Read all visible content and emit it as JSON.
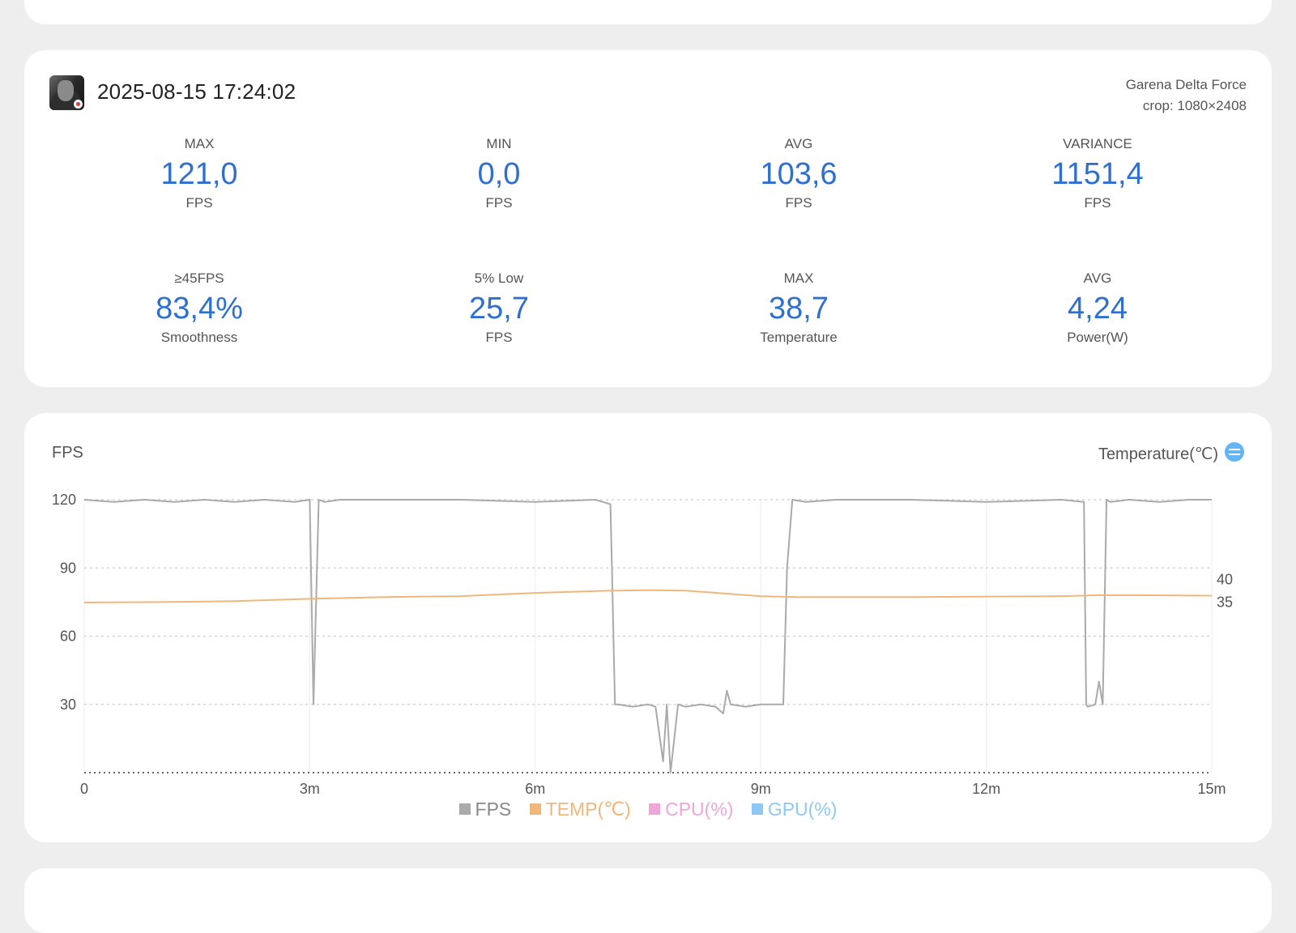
{
  "session": {
    "datetime": "2025-08-15 17:24:02",
    "game": "Garena Delta Force",
    "crop": "crop: 1080×2408"
  },
  "stats": [
    {
      "label": "MAX",
      "value": "121,0",
      "unit": "FPS"
    },
    {
      "label": "MIN",
      "value": "0,0",
      "unit": "FPS"
    },
    {
      "label": "AVG",
      "value": "103,6",
      "unit": "FPS"
    },
    {
      "label": "VARIANCE",
      "value": "1151,4",
      "unit": "FPS"
    },
    {
      "label": "≥45FPS",
      "value": "83,4%",
      "unit": "Smoothness"
    },
    {
      "label": "5% Low",
      "value": "25,7",
      "unit": "FPS"
    },
    {
      "label": "MAX",
      "value": "38,7",
      "unit": "Temperature"
    },
    {
      "label": "AVG",
      "value": "4,24",
      "unit": "Power(W)"
    }
  ],
  "chart": {
    "left_title": "FPS",
    "right_title": "Temperature(℃)",
    "icons": {
      "right_toggle": "swap-icon"
    }
  },
  "chart_data": {
    "type": "line",
    "title": "",
    "xlabel": "",
    "ylabel": "FPS",
    "y2label": "Temperature(℃)",
    "x_unit": "minutes",
    "xlim": [
      0,
      15
    ],
    "ylim": [
      0,
      120
    ],
    "y2_ticks": [
      35,
      40
    ],
    "x_ticks": [
      0,
      3,
      6,
      9,
      12,
      15
    ],
    "x_tick_labels": [
      "0",
      "3m",
      "6m",
      "9m",
      "12m",
      "15m"
    ],
    "y_ticks": [
      30,
      60,
      90,
      120
    ],
    "y_tick_labels": [
      "30",
      "60",
      "90",
      "120"
    ],
    "y2_tick_labels": [
      "35",
      "40"
    ],
    "grid": true,
    "legend_position": "bottom",
    "series": [
      {
        "name": "FPS",
        "color": "#aaaaaa",
        "x": [
          0,
          0.4,
          0.8,
          1.2,
          1.6,
          2.0,
          2.4,
          2.8,
          3.0,
          3.05,
          3.12,
          3.2,
          3.4,
          4.0,
          5.0,
          6.0,
          6.8,
          7.0,
          7.02,
          7.06,
          7.1,
          7.3,
          7.5,
          7.6,
          7.7,
          7.75,
          7.8,
          7.9,
          8.0,
          8.2,
          8.4,
          8.5,
          8.55,
          8.6,
          8.8,
          9.0,
          9.3,
          9.35,
          9.42,
          9.6,
          10.0,
          11.0,
          12.0,
          13.0,
          13.3,
          13.33,
          13.35,
          13.45,
          13.5,
          13.55,
          13.6,
          13.65,
          13.9,
          14.3,
          14.7,
          15.0
        ],
        "y": [
          120,
          119,
          120,
          119,
          120,
          119,
          120,
          119,
          120,
          30,
          120,
          119,
          120,
          120,
          120,
          119,
          120,
          118,
          90,
          30,
          30,
          29,
          30,
          29,
          5,
          30,
          0,
          30,
          29,
          30,
          29,
          26,
          36,
          30,
          29,
          30,
          30,
          90,
          120,
          119,
          120,
          120,
          119,
          120,
          119,
          30,
          29,
          30,
          40,
          30,
          120,
          119,
          120,
          119,
          120,
          120
        ]
      },
      {
        "name": "TEMP(℃)",
        "color": "#f0b77b",
        "axis": "right",
        "x": [
          0,
          1,
          2,
          3,
          4,
          5,
          6,
          7,
          7.5,
          8,
          8.5,
          9,
          9.5,
          10,
          11,
          12,
          13,
          13.5,
          14,
          15
        ],
        "y": [
          34.9,
          35.0,
          35.2,
          35.7,
          36.1,
          36.3,
          37.0,
          37.5,
          37.6,
          37.5,
          36.9,
          36.3,
          36.1,
          36.1,
          36.1,
          36.2,
          36.3,
          36.5,
          36.5,
          36.4
        ]
      },
      {
        "name": "CPU(%)",
        "color": "#f0a6d8",
        "x": [],
        "y": []
      },
      {
        "name": "GPU(%)",
        "color": "#8fc8f5",
        "x": [],
        "y": []
      }
    ]
  }
}
